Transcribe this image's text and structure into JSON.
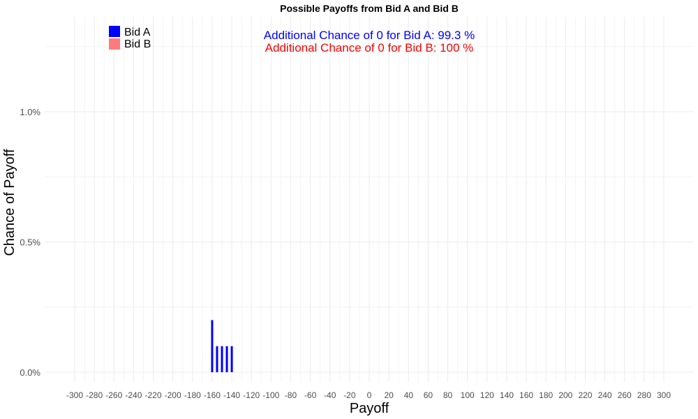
{
  "chart_data": {
    "type": "bar",
    "title": "Possible Payoffs from Bid A and Bid B",
    "xlabel": "Payoff",
    "ylabel": "Chance of Payoff",
    "xlim": [
      -315,
      315
    ],
    "ylim": [
      0,
      1.2
    ],
    "x_ticks": [
      -300,
      -280,
      -260,
      -240,
      -220,
      -200,
      -180,
      -160,
      -140,
      -120,
      -100,
      -80,
      -60,
      -40,
      -20,
      0,
      20,
      40,
      60,
      80,
      100,
      120,
      140,
      160,
      180,
      200,
      220,
      240,
      260,
      280,
      300
    ],
    "x_tick_labels": [
      "-300",
      "-280",
      "-260",
      "-240",
      "-220",
      "-200",
      "-180",
      "-160",
      "-140",
      "-120",
      "-100",
      "-80",
      "-60",
      "-40",
      "-20",
      "0",
      "20",
      "40",
      "60",
      "80",
      "100",
      "120",
      "140",
      "160",
      "180",
      "200",
      "220",
      "240",
      "260",
      "280",
      "300"
    ],
    "y_ticks": [
      0,
      0.5,
      1.0
    ],
    "y_tick_labels": [
      "0.0%",
      "0.5%",
      "1.0%"
    ],
    "grid": true,
    "legend_position": "top-left",
    "series": [
      {
        "name": "Bid A",
        "color": "#0000ff",
        "points": [
          {
            "x": -160,
            "y": 0.2
          },
          {
            "x": -155,
            "y": 0.1
          },
          {
            "x": -150,
            "y": 0.1
          },
          {
            "x": -145,
            "y": 0.1
          },
          {
            "x": -140,
            "y": 0.1
          }
        ]
      },
      {
        "name": "Bid B",
        "color": "#ff7b7b",
        "points": []
      }
    ],
    "annotations": [
      {
        "text": "Additional Chance of 0 for Bid A:  99.3 %",
        "color": "#0000ff"
      },
      {
        "text": "Additional Chance of 0 for Bid B:  100 %",
        "color": "#ff0000"
      }
    ]
  }
}
